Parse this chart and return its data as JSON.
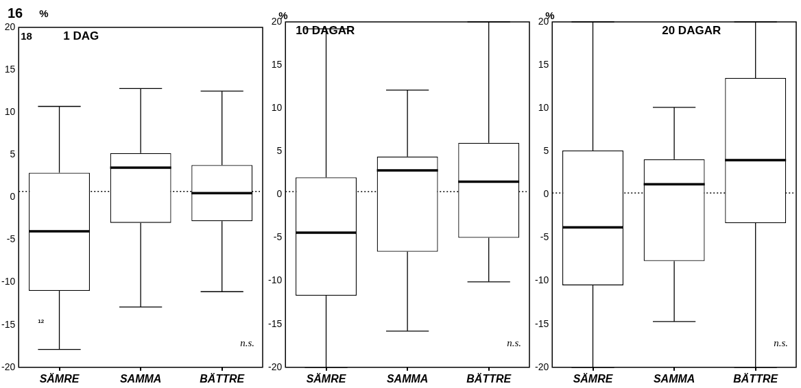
{
  "chart_data": [
    {
      "type": "box",
      "title": "1 DAG",
      "ylabel": "%",
      "categories": [
        "SÄMRE",
        "SAMMA",
        "BÄTTRE"
      ],
      "grid": false,
      "ylim": [
        -20,
        20
      ],
      "yticks": [
        -20,
        -15,
        -10,
        -5,
        0,
        5,
        10,
        15,
        20
      ],
      "boxes": [
        {
          "low": -17.9,
          "q1": -11.0,
          "median": -4.0,
          "q3": 2.9,
          "high": 10.7
        },
        {
          "low": -12.9,
          "q1": -3.0,
          "median": 3.5,
          "q3": 5.2,
          "high": 12.8
        },
        {
          "low": -11.1,
          "q1": -2.8,
          "median": 0.5,
          "q3": 3.8,
          "high": 12.5
        }
      ],
      "ref_lines": [
        {
          "axis": "y",
          "value": 0.7,
          "line_style": "dotted"
        }
      ],
      "annotations": [
        "16",
        "18",
        "12",
        "n.s."
      ]
    },
    {
      "type": "box",
      "title": "10 DAGAR",
      "ylabel": "%",
      "categories": [
        "SÄMRE",
        "SAMMA",
        "BÄTTRE"
      ],
      "grid": false,
      "ylim": [
        -20,
        20
      ],
      "yticks": [
        -20,
        -15,
        -10,
        -5,
        0,
        5,
        10,
        15,
        20
      ],
      "boxes": [
        {
          "low": -20,
          "q1": -11.7,
          "median": -4.4,
          "q3": 2.0,
          "high": 19.2
        },
        {
          "low": -15.8,
          "q1": -6.6,
          "median": 2.8,
          "q3": 4.4,
          "high": 12.1
        },
        {
          "low": -10.1,
          "q1": -5.0,
          "median": 1.5,
          "q3": 6.0,
          "high": 20
        }
      ],
      "ref_lines": [
        {
          "axis": "y",
          "value": 0.35,
          "line_style": "dotted"
        }
      ],
      "annotations": [
        "n.s."
      ]
    },
    {
      "type": "box",
      "title": "20 DAGAR",
      "ylabel": "%",
      "categories": [
        "SÄMRE",
        "SAMMA",
        "BÄTTRE"
      ],
      "grid": false,
      "ylim": [
        -20,
        20
      ],
      "yticks": [
        -20,
        -15,
        -10,
        -5,
        0,
        5,
        10,
        15,
        20
      ],
      "boxes": [
        {
          "low": -20,
          "q1": -10.5,
          "median": -3.8,
          "q3": 5.1,
          "high": 20
        },
        {
          "low": -14.7,
          "q1": -7.7,
          "median": 1.2,
          "q3": 4.1,
          "high": 10.1
        },
        {
          "low": -20,
          "q1": -3.3,
          "median": 4.0,
          "q3": 13.5,
          "high": 20
        }
      ],
      "ref_lines": [
        {
          "axis": "y",
          "value": 0.2,
          "line_style": "dotted"
        }
      ],
      "annotations": [
        "n.s."
      ]
    }
  ]
}
